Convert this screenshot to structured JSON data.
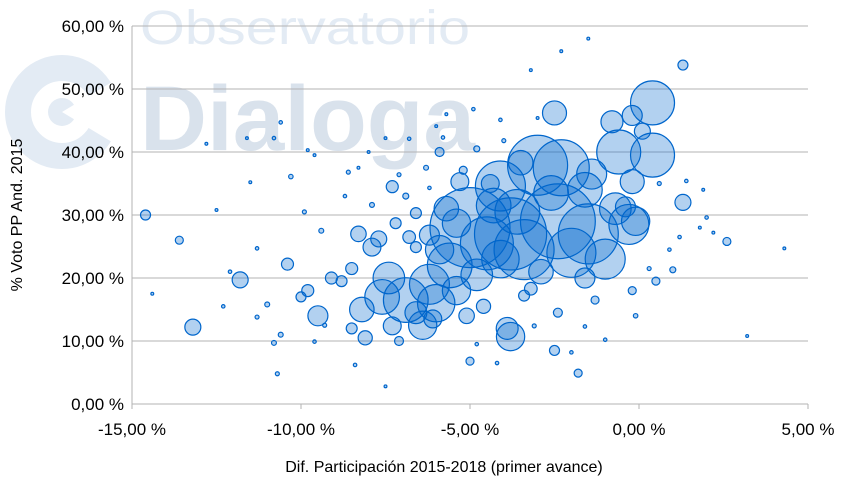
{
  "watermark": {
    "line1": "Observatorio",
    "line2": "Dialoga"
  },
  "colors": {
    "bubble_fill": "rgba(0,102,204,0.30)",
    "bubble_stroke": "#0066cc",
    "grid": "#b3b3b3",
    "watermark": "#d9e2ec"
  },
  "chart_data": {
    "type": "scatter",
    "subtype": "bubble",
    "title": "",
    "xlabel": "Dif. Participación 2015-2018 (primer avance)",
    "ylabel": "% Voto PP And. 2015",
    "xlim": [
      -15,
      5
    ],
    "ylim": [
      0,
      60
    ],
    "xticks": [
      -15,
      -10,
      -5,
      0,
      5
    ],
    "yticks": [
      0,
      10,
      20,
      30,
      40,
      50,
      60
    ],
    "xtick_labels": [
      "-15,00 %",
      "-10,00 %",
      "-5,00 %",
      "0,00 %",
      "5,00 %"
    ],
    "ytick_labels": [
      "0,00 %",
      "10,00 %",
      "20,00 %",
      "30,00 %",
      "40,00 %",
      "50,00 %",
      "60,00 %"
    ],
    "grid": "horizontal",
    "legend": "none",
    "point_fields": [
      "x",
      "y",
      "size"
    ],
    "points": [
      [
        0.4,
        47.8,
        484
      ],
      [
        -0.6,
        40,
        484
      ],
      [
        0.4,
        39.5,
        484
      ],
      [
        -2.5,
        46.2,
        144
      ],
      [
        -0.8,
        44.8,
        121
      ],
      [
        -0.2,
        45.8,
        100
      ],
      [
        0.1,
        43.3,
        64
      ],
      [
        -3.0,
        37.9,
        900
      ],
      [
        -2.3,
        37.5,
        784
      ],
      [
        -4.1,
        34.6,
        625
      ],
      [
        -1.4,
        36.5,
        225
      ],
      [
        -0.2,
        35.3,
        144
      ],
      [
        -5.0,
        28,
        1600
      ],
      [
        -3.8,
        27,
        1300
      ],
      [
        -2.4,
        29,
        1400
      ],
      [
        -1.5,
        27,
        900
      ],
      [
        -0.3,
        28.5,
        400
      ],
      [
        -3.4,
        24.5,
        900
      ],
      [
        -4.5,
        25.5,
        700
      ],
      [
        -2.0,
        24,
        600
      ],
      [
        -1.0,
        23,
        400
      ],
      [
        -5.6,
        22,
        500
      ],
      [
        -6.2,
        19,
        400
      ],
      [
        -6.9,
        16.5,
        500
      ],
      [
        -6.4,
        12.5,
        200
      ],
      [
        -7.6,
        17,
        300
      ],
      [
        -7.4,
        20,
        250
      ],
      [
        -8.2,
        15,
        150
      ],
      [
        -6.0,
        16,
        350
      ],
      [
        -5.4,
        18,
        200
      ],
      [
        -3.9,
        12,
        120
      ],
      [
        -3.8,
        10.7,
        200
      ],
      [
        -1.6,
        34,
        300
      ],
      [
        -0.7,
        31,
        250
      ],
      [
        1.3,
        32,
        64
      ],
      [
        -2.6,
        33.5,
        300
      ],
      [
        -3.6,
        30.5,
        500
      ],
      [
        -4.3,
        31.5,
        300
      ],
      [
        -5.3,
        35.3,
        80
      ],
      [
        -5.9,
        24.5,
        200
      ],
      [
        -4.8,
        20.5,
        250
      ],
      [
        -4.1,
        23,
        350
      ],
      [
        -7.9,
        24.9,
        80
      ],
      [
        -7.7,
        26.2,
        64
      ],
      [
        -8.3,
        27,
        60
      ],
      [
        -9.5,
        14,
        100
      ],
      [
        -10.4,
        22.2,
        36
      ],
      [
        -11.8,
        19.7,
        64
      ],
      [
        -13.2,
        12.2,
        64
      ],
      [
        -14.6,
        30,
        25
      ],
      [
        -13.6,
        26,
        16
      ],
      [
        -7.3,
        34.5,
        36
      ],
      [
        -7.2,
        28.7,
        30
      ],
      [
        -6.8,
        26.5,
        40
      ],
      [
        -6.6,
        30.3,
        30
      ],
      [
        -5.9,
        40,
        20
      ],
      [
        -5.2,
        37.1,
        16
      ],
      [
        -4.8,
        40.5,
        9
      ],
      [
        -3.4,
        17.2,
        30
      ],
      [
        -2.5,
        8.5,
        25
      ],
      [
        -1.8,
        4.9,
        16
      ],
      [
        -5.0,
        6.8,
        16
      ],
      [
        -7.1,
        10,
        20
      ],
      [
        -8.5,
        12,
        30
      ],
      [
        -9.1,
        20,
        36
      ],
      [
        -9.8,
        18,
        36
      ],
      [
        -10,
        17,
        25
      ],
      [
        -8.8,
        19.5,
        30
      ],
      [
        -8.5,
        21.5,
        36
      ],
      [
        -6.6,
        24.9,
        30
      ],
      [
        1.3,
        53.8,
        25
      ],
      [
        2.6,
        25.8,
        16
      ],
      [
        1.0,
        21.3,
        9
      ],
      [
        -0.4,
        31.3,
        100
      ],
      [
        -0.1,
        29,
        200
      ],
      [
        -6.6,
        14.5,
        120
      ],
      [
        -7.3,
        12.4,
        80
      ],
      [
        -8.1,
        10.5,
        50
      ],
      [
        -6.1,
        13.5,
        80
      ],
      [
        -5.1,
        14,
        60
      ],
      [
        -4.6,
        15.5,
        50
      ],
      [
        -3.2,
        18.3,
        40
      ],
      [
        -2.4,
        14.5,
        20
      ],
      [
        -1.3,
        16.5,
        16
      ],
      [
        -0.2,
        18,
        16
      ],
      [
        0.5,
        19.5,
        16
      ],
      [
        -2.9,
        21,
        150
      ],
      [
        -1.6,
        20,
        100
      ],
      [
        -5.7,
        31,
        150
      ],
      [
        -5.4,
        28.7,
        200
      ],
      [
        -6.2,
        26.8,
        100
      ],
      [
        -4.4,
        35,
        80
      ],
      [
        -3.5,
        38.3,
        150
      ],
      [
        -12.8,
        41.3,
        2
      ],
      [
        -11.6,
        42.2,
        2
      ],
      [
        -10.6,
        44.7,
        3
      ],
      [
        -10.8,
        42.2,
        3
      ],
      [
        -9.6,
        39.5,
        2
      ],
      [
        -8.3,
        37.5,
        2
      ],
      [
        -7.5,
        42.2,
        2
      ],
      [
        -6.8,
        42.1,
        3
      ],
      [
        -5.7,
        46,
        2
      ],
      [
        -4.9,
        46.8,
        3
      ],
      [
        -3.2,
        53,
        2
      ],
      [
        -2.3,
        56,
        2
      ],
      [
        -1.5,
        58,
        2
      ],
      [
        -4.1,
        45.1,
        3
      ],
      [
        -3.0,
        45.4,
        2
      ],
      [
        3.2,
        10.8,
        2
      ],
      [
        4.3,
        24.7,
        2
      ],
      [
        2.2,
        27.2,
        2
      ],
      [
        1.9,
        34,
        2
      ],
      [
        1.4,
        35.4,
        3
      ],
      [
        -14.4,
        17.5,
        2
      ],
      [
        -12.3,
        15.5,
        3
      ],
      [
        -11.3,
        24.7,
        3
      ],
      [
        -12.1,
        21,
        3
      ],
      [
        -10.8,
        9.7,
        6
      ],
      [
        -10.7,
        4.8,
        4
      ],
      [
        -7.5,
        2.8,
        2
      ],
      [
        -8.4,
        6.2,
        3
      ],
      [
        -9.9,
        30.5,
        4
      ],
      [
        -9.4,
        27.5,
        6
      ],
      [
        -10.3,
        36.1,
        5
      ],
      [
        -11.5,
        35.2,
        2
      ],
      [
        -12.5,
        30.8,
        2
      ],
      [
        -8.6,
        36.8,
        4
      ],
      [
        -6.9,
        33,
        9
      ],
      [
        -6.3,
        37.5,
        6
      ],
      [
        -4.2,
        6.5,
        3
      ],
      [
        -1.0,
        10.2,
        3
      ],
      [
        -0.1,
        14,
        5
      ],
      [
        -2.0,
        8.2,
        3
      ],
      [
        0.3,
        21.5,
        4
      ],
      [
        1.8,
        28,
        2
      ],
      [
        2.0,
        29.6,
        3
      ],
      [
        -1.6,
        12.3,
        3
      ],
      [
        -3.1,
        12.4,
        4
      ],
      [
        -4.8,
        9.5,
        3
      ],
      [
        -9.6,
        9.9,
        3
      ],
      [
        -10.6,
        11,
        6
      ],
      [
        -11.0,
        15.8,
        6
      ],
      [
        -11.3,
        13.8,
        4
      ],
      [
        -9.3,
        12.5,
        4
      ],
      [
        -8.7,
        33,
        3
      ],
      [
        -7.9,
        31.6,
        6
      ],
      [
        -7.1,
        36.4,
        4
      ],
      [
        -6.2,
        34.3,
        3
      ],
      [
        -4.0,
        41.8,
        4
      ],
      [
        -5.8,
        42.3,
        3
      ],
      [
        -6.0,
        44.1,
        2
      ],
      [
        -8.0,
        40,
        2
      ],
      [
        -9.8,
        40.3,
        2
      ],
      [
        0.6,
        35,
        4
      ],
      [
        1.2,
        26.5,
        3
      ],
      [
        0.9,
        24.5,
        3
      ]
    ]
  }
}
